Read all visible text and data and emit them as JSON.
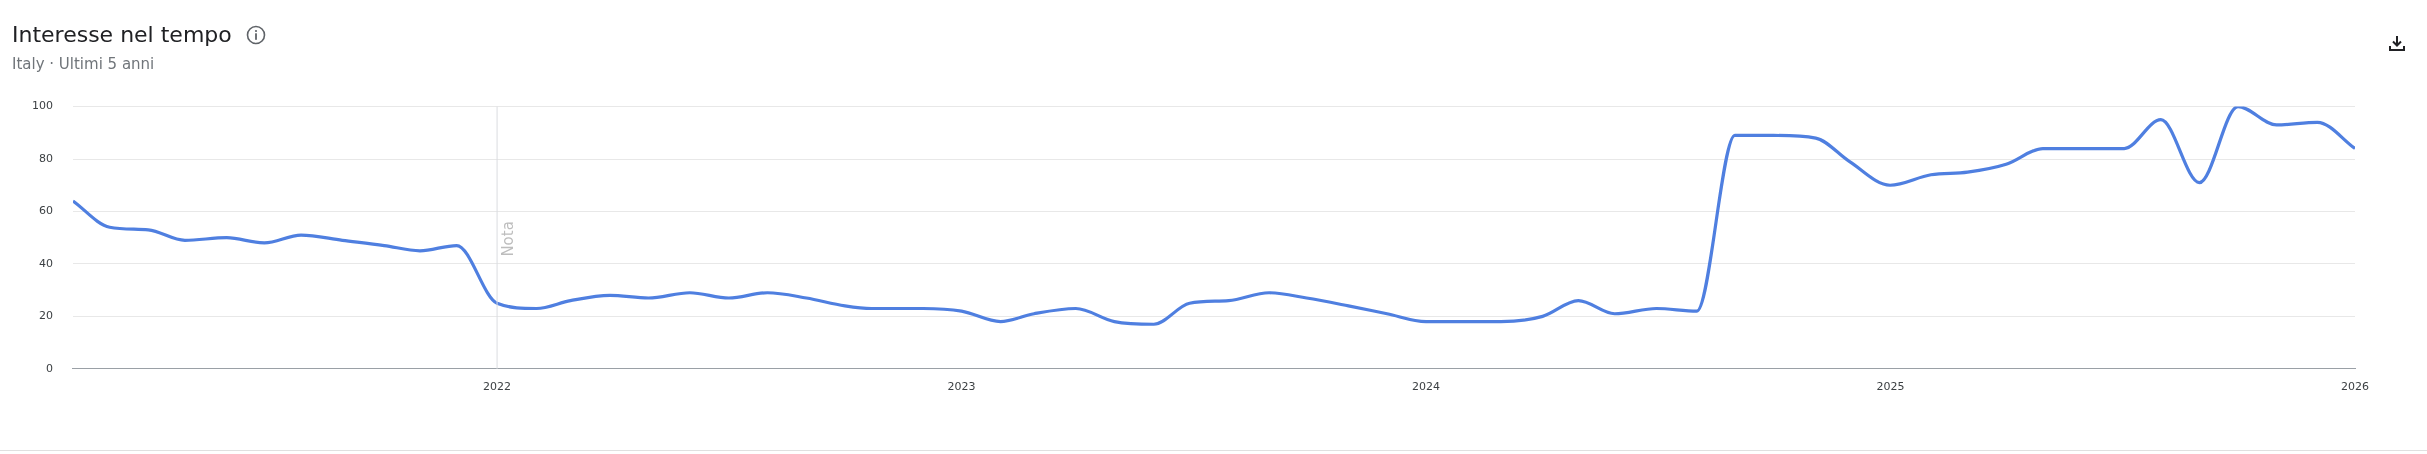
{
  "chart_data": {
    "type": "line",
    "title": "Interesse nel tempo",
    "subtitle": "Italy · Ultimi 5 anni",
    "x": [
      2021.087,
      2021.166,
      2021.249,
      2021.328,
      2021.418,
      2021.499,
      2021.578,
      2021.667,
      2021.757,
      2021.834,
      2021.913,
      2022.0,
      2022.085,
      2022.158,
      2022.243,
      2022.326,
      2022.415,
      2022.499,
      2022.582,
      2022.666,
      2022.749,
      2022.806,
      2022.917,
      2023.0,
      2023.084,
      2023.156,
      2023.246,
      2023.329,
      2023.414,
      2023.491,
      2023.575,
      2023.662,
      2023.743,
      2023.833,
      2023.916,
      2024.0,
      2024.161,
      2024.251,
      2024.328,
      2024.406,
      2024.496,
      2024.583,
      2024.665,
      2024.748,
      2024.839,
      2024.912,
      2024.999,
      2025.087,
      2025.166,
      2025.249,
      2025.328,
      2025.503,
      2025.582,
      2025.665,
      2025.748,
      2025.831,
      2025.919,
      2026.0
    ],
    "series": [
      {
        "color": "#4f7fe0",
        "values": [
          64,
          54,
          53,
          49,
          50,
          48,
          51,
          49,
          47,
          45,
          47,
          25,
          23,
          26,
          28,
          27,
          29,
          27,
          29,
          27,
          24,
          23,
          23,
          22,
          18,
          21,
          23,
          18,
          17,
          25,
          26,
          29,
          27,
          24,
          21,
          18,
          18,
          20,
          26,
          21,
          23,
          22,
          89,
          89,
          88,
          79,
          70,
          74,
          75,
          78,
          84,
          84,
          95,
          71,
          100,
          93,
          94,
          84
        ]
      }
    ],
    "xlim": [
      2021.087,
      2026
    ],
    "xticks": [
      2022,
      2023,
      2024,
      2025,
      2026
    ],
    "ylim": [
      0,
      100
    ],
    "yticks": [
      0,
      20,
      40,
      60,
      80,
      100
    ],
    "grid": "y",
    "legend": false,
    "marker": "none",
    "line_style": "solid",
    "ref_lines": [
      {
        "axis": "x",
        "value": 2022,
        "label": "Nota",
        "color": "#dadce0"
      }
    ]
  }
}
